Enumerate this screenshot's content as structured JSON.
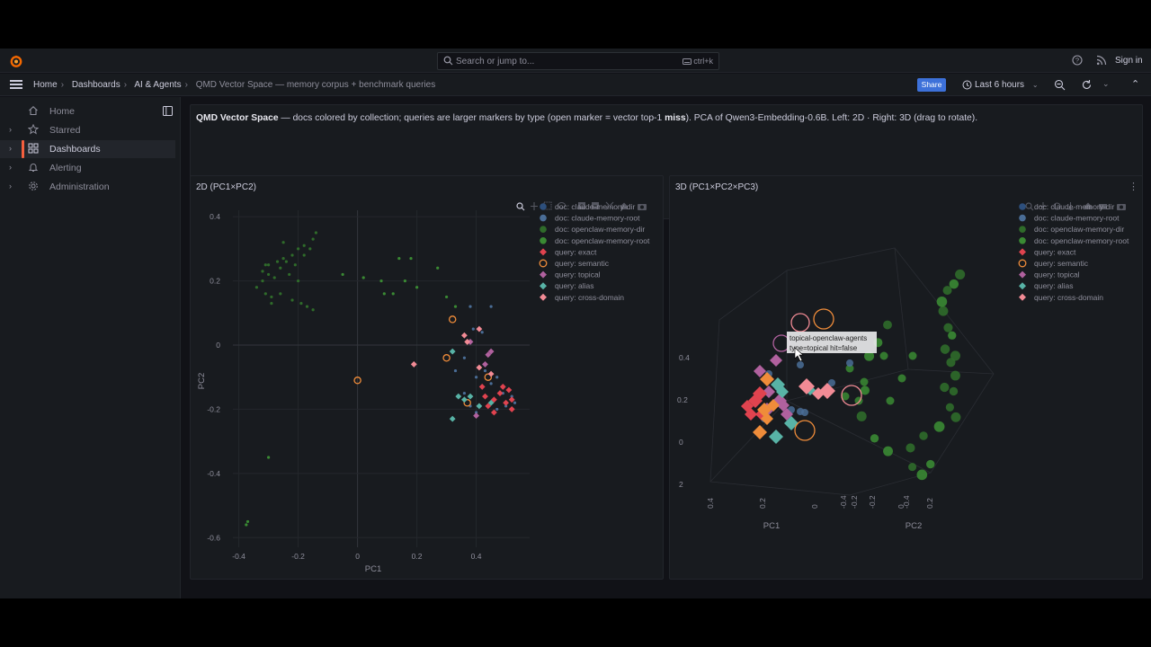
{
  "topbar": {
    "search_placeholder": "Search or jump to...",
    "search_shortcut": "ctrl+k",
    "sign_in": "Sign in"
  },
  "breadcrumb": {
    "items": [
      "Home",
      "Dashboards",
      "AI & Agents"
    ],
    "current": "QMD Vector Space — memory corpus + benchmark queries"
  },
  "toolbar": {
    "share_label": "Share",
    "time_range": "Last 6 hours"
  },
  "sidebar": {
    "items": [
      {
        "label": "Home",
        "icon": "home-icon"
      },
      {
        "label": "Starred",
        "icon": "star-icon"
      },
      {
        "label": "Dashboards",
        "icon": "dashboards-icon",
        "active": true
      },
      {
        "label": "Alerting",
        "icon": "bell-icon"
      },
      {
        "label": "Administration",
        "icon": "gear-icon"
      }
    ]
  },
  "description": {
    "bold_title": "QMD Vector Space",
    "text_1": " — docs colored by collection; queries are larger markers by type (open marker = vector top-1 ",
    "bold_miss": "miss",
    "text_2": "). PCA of Qwen3-Embedding-0.6B. Left: 2D · Right: 3D (drag to rotate)."
  },
  "panels": {
    "left_title": "2D (PC1×PC2)",
    "right_title": "3D (PC1×PC2×PC3)"
  },
  "colors": {
    "claude_memory_dir": "#2d4f7c",
    "claude_memory_root": "#4a6d96",
    "openclaw_memory_dir": "#2f6b2a",
    "openclaw_memory_root": "#3a8a33",
    "exact": "#e0434f",
    "semantic": "#ef8c3a",
    "topical": "#b0619e",
    "alias": "#58b3a6",
    "cross_domain": "#f28b95"
  },
  "legend": [
    {
      "label": "doc: claude-memory-dir",
      "marker": "circle",
      "color_key": "claude_memory_dir"
    },
    {
      "label": "doc: claude-memory-root",
      "marker": "circle",
      "color_key": "claude_memory_root"
    },
    {
      "label": "doc: openclaw-memory-dir",
      "marker": "circle",
      "color_key": "openclaw_memory_dir"
    },
    {
      "label": "doc: openclaw-memory-root",
      "marker": "circle",
      "color_key": "openclaw_memory_root"
    },
    {
      "label": "query: exact",
      "marker": "diamond",
      "color_key": "exact"
    },
    {
      "label": "query: semantic",
      "marker": "open-circle",
      "color_key": "semantic"
    },
    {
      "label": "query: topical",
      "marker": "diamond",
      "color_key": "topical"
    },
    {
      "label": "query: alias",
      "marker": "diamond",
      "color_key": "alias"
    },
    {
      "label": "query: cross-domain",
      "marker": "diamond",
      "color_key": "cross_domain"
    }
  ],
  "chart_data": [
    {
      "type": "scatter",
      "title": "2D (PC1×PC2)",
      "xlabel": "PC1",
      "ylabel": "PC2",
      "xlim": [
        -0.42,
        0.58
      ],
      "ylim": [
        -0.63,
        0.42
      ],
      "x_ticks": [
        "-0.4",
        "-0.2",
        "0",
        "0.2",
        "0.4"
      ],
      "y_ticks": [
        "0.4",
        "0.2",
        "0",
        "-0.2",
        "-0.4",
        "-0.6"
      ],
      "series": [
        {
          "name": "doc: openclaw-memory-dir",
          "marker": "dot",
          "points": [
            [
              -0.14,
              0.35
            ],
            [
              -0.15,
              0.33
            ],
            [
              -0.18,
              0.31
            ],
            [
              -0.2,
              0.3
            ],
            [
              -0.18,
              0.28
            ],
            [
              -0.22,
              0.28
            ],
            [
              -0.25,
              0.27
            ],
            [
              -0.27,
              0.26
            ],
            [
              -0.31,
              0.25
            ],
            [
              -0.3,
              0.22
            ],
            [
              -0.28,
              0.21
            ],
            [
              -0.26,
              0.24
            ],
            [
              -0.23,
              0.22
            ],
            [
              -0.2,
              0.2
            ],
            [
              -0.32,
              0.2
            ],
            [
              -0.34,
              0.18
            ],
            [
              -0.31,
              0.16
            ],
            [
              -0.29,
              0.15
            ],
            [
              -0.26,
              0.16
            ],
            [
              -0.22,
              0.14
            ],
            [
              -0.19,
              0.13
            ],
            [
              -0.17,
              0.12
            ],
            [
              -0.29,
              0.13
            ],
            [
              -0.15,
              0.11
            ],
            [
              -0.3,
              0.25
            ],
            [
              -0.32,
              0.23
            ],
            [
              -0.24,
              0.26
            ],
            [
              -0.16,
              0.3
            ],
            [
              -0.25,
              0.32
            ],
            [
              -0.21,
              0.25
            ]
          ]
        },
        {
          "name": "doc: openclaw-memory-root",
          "marker": "dot",
          "points": [
            [
              -0.05,
              0.22
            ],
            [
              0.02,
              0.21
            ],
            [
              0.08,
              0.2
            ],
            [
              0.14,
              0.27
            ],
            [
              0.18,
              0.27
            ],
            [
              0.16,
              0.2
            ],
            [
              0.2,
              0.18
            ],
            [
              0.09,
              0.16
            ],
            [
              0.12,
              0.16
            ],
            [
              0.27,
              0.24
            ],
            [
              0.3,
              0.15
            ],
            [
              0.33,
              0.12
            ],
            [
              -0.3,
              -0.35
            ],
            [
              -0.37,
              -0.55
            ],
            [
              -0.375,
              -0.56
            ]
          ]
        },
        {
          "name": "doc: claude-memory-root",
          "marker": "dot",
          "points": [
            [
              0.38,
              0.12
            ],
            [
              0.39,
              0.05
            ],
            [
              0.42,
              0.04
            ],
            [
              0.45,
              0.12
            ],
            [
              0.36,
              -0.04
            ],
            [
              0.4,
              -0.1
            ],
            [
              0.43,
              -0.08
            ],
            [
              0.45,
              -0.12
            ],
            [
              0.47,
              -0.1
            ],
            [
              0.49,
              -0.15
            ],
            [
              0.5,
              -0.19
            ],
            [
              0.52,
              -0.16
            ],
            [
              0.36,
              -0.15
            ],
            [
              0.38,
              -0.19
            ],
            [
              0.4,
              -0.21
            ],
            [
              0.44,
              -0.19
            ],
            [
              0.47,
              -0.2
            ],
            [
              0.53,
              -0.18
            ],
            [
              0.33,
              -0.08
            ]
          ]
        },
        {
          "name": "query: exact",
          "marker": "diamond",
          "points": [
            [
              0.43,
              -0.16
            ],
            [
              0.46,
              -0.17
            ],
            [
              0.48,
              -0.15
            ],
            [
              0.5,
              -0.18
            ],
            [
              0.51,
              -0.14
            ],
            [
              0.52,
              -0.2
            ],
            [
              0.44,
              -0.19
            ],
            [
              0.46,
              -0.21
            ],
            [
              0.49,
              -0.13
            ],
            [
              0.42,
              -0.13
            ],
            [
              0.52,
              -0.17
            ]
          ]
        },
        {
          "name": "query: semantic",
          "marker": "open-circle",
          "points": [
            [
              -0.0,
              -0.11
            ],
            [
              0.32,
              0.08
            ],
            [
              0.3,
              -0.04
            ],
            [
              0.44,
              -0.1
            ],
            [
              0.37,
              -0.18
            ]
          ]
        },
        {
          "name": "query: topical",
          "marker": "diamond",
          "points": [
            [
              0.38,
              0.01
            ],
            [
              0.44,
              -0.03
            ],
            [
              0.4,
              -0.22
            ],
            [
              0.43,
              -0.06
            ],
            [
              0.45,
              -0.02
            ]
          ]
        },
        {
          "name": "query: alias",
          "marker": "diamond",
          "points": [
            [
              0.32,
              -0.02
            ],
            [
              0.34,
              -0.16
            ],
            [
              0.36,
              -0.17
            ],
            [
              0.38,
              -0.16
            ],
            [
              0.32,
              -0.23
            ],
            [
              0.41,
              -0.19
            ],
            [
              0.45,
              -0.18
            ]
          ]
        },
        {
          "name": "query: cross-domain",
          "marker": "diamond",
          "points": [
            [
              0.19,
              -0.06
            ],
            [
              0.36,
              0.03
            ],
            [
              0.37,
              0.01
            ],
            [
              0.41,
              0.05
            ],
            [
              0.41,
              -0.07
            ],
            [
              0.45,
              -0.09
            ]
          ]
        }
      ]
    },
    {
      "type": "scatter",
      "title": "3D (PC1×PC2×PC3)",
      "xlabel": "PC1",
      "ylabel": "PC2",
      "x_ticks": [
        "0.4",
        "0.2",
        "0",
        "-0.2",
        "-0.4"
      ],
      "y_ticks": [
        "-0.4",
        "-0.2",
        "0",
        "0.2"
      ],
      "z_ticks": [
        "0.4",
        "0.2",
        "0",
        "2"
      ],
      "tooltip": {
        "title": "topical-openclaw-agents",
        "detail": "type=topical hit=false"
      }
    }
  ]
}
